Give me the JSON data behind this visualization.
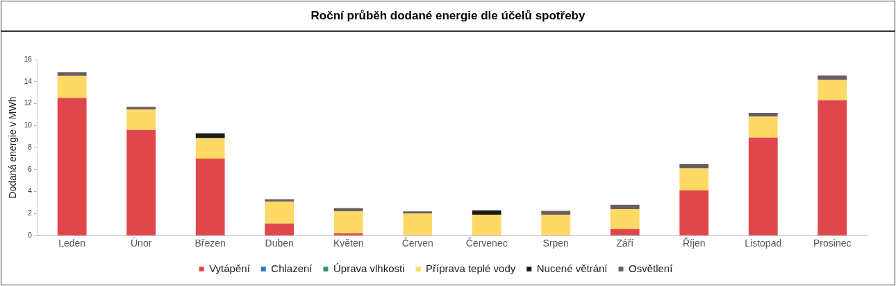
{
  "chart_data": {
    "type": "bar",
    "title": "Roční průběh dodané energie dle účelů spotřeby",
    "ylabel": "Dodaná energie v MWh",
    "stacked": true,
    "grid": false,
    "legend": "bottom",
    "categories": [
      "Leden",
      "Únor",
      "Březen",
      "Duben",
      "Květen",
      "Červen",
      "Červenec",
      "Srpen",
      "Září",
      "Říjen",
      "Listopad",
      "Prosinec"
    ],
    "ylim": [
      0,
      16
    ],
    "yticks": [
      0,
      2,
      4,
      6,
      8,
      10,
      12,
      14,
      16
    ],
    "series": [
      {
        "name": "Vytápění",
        "color": "#e0474c",
        "values": [
          12.5,
          9.6,
          7.0,
          1.1,
          0.2,
          0,
          0,
          0,
          0.6,
          4.1,
          8.9,
          12.3
        ]
      },
      {
        "name": "Chlazení",
        "color": "#2f7ab9",
        "values": [
          0,
          0,
          0,
          0,
          0,
          0,
          0,
          0,
          0,
          0,
          0,
          0
        ]
      },
      {
        "name": "Úprava vlhkosti",
        "color": "#3a8f6f",
        "values": [
          0,
          0,
          0,
          0,
          0,
          0,
          0,
          0,
          0,
          0,
          0,
          0
        ]
      },
      {
        "name": "Příprava teplé vody",
        "color": "#ffd966",
        "values": [
          2.0,
          1.85,
          1.85,
          2.0,
          2.0,
          2.0,
          1.9,
          1.9,
          1.8,
          2.0,
          1.9,
          1.85
        ]
      },
      {
        "name": "Nucené větrání",
        "color": "#1a1a1a",
        "values": [
          0,
          0,
          0.45,
          0,
          0,
          0,
          0.4,
          0,
          0,
          0,
          0,
          0
        ]
      },
      {
        "name": "Osvětlení",
        "color": "#6b5e62",
        "values": [
          0.35,
          0.25,
          0,
          0.2,
          0.3,
          0.2,
          0,
          0.35,
          0.4,
          0.4,
          0.35,
          0.4
        ]
      }
    ]
  }
}
